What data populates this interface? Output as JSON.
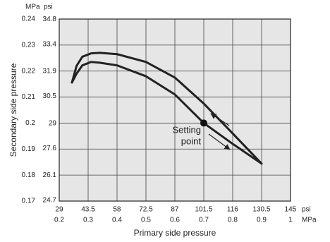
{
  "chart_data": {
    "type": "line",
    "x_label": "Primary side pressure",
    "y_label": "Secondary side pressure",
    "x_unit": "MPa",
    "x2_unit": "psi",
    "y_unit": "MPa",
    "y2_unit": "psi",
    "x": [
      0.244,
      0.26,
      0.28,
      0.31,
      0.34,
      0.4,
      0.5,
      0.6,
      0.7,
      0.8,
      0.9
    ],
    "series": [
      {
        "color": "#222222",
        "values": [
          0.2156,
          0.222,
          0.2255,
          0.2268,
          0.227,
          0.2265,
          0.2235,
          0.2175,
          0.2075,
          0.196,
          0.1844
        ]
      },
      {
        "color": "#222222",
        "values": [
          0.2156,
          0.219,
          0.2222,
          0.2235,
          0.2232,
          0.2222,
          0.218,
          0.211,
          0.2,
          0.192,
          0.1844
        ]
      }
    ],
    "xlim": [
      0.2,
      1.0
    ],
    "xticks": [
      0.2,
      0.3,
      0.4,
      0.5,
      0.6,
      0.7,
      0.8,
      0.9,
      1
    ],
    "x2lim": [
      29.01,
      145.04
    ],
    "x2ticks": [
      29,
      43.5,
      58,
      72.5,
      87,
      101.5,
      116,
      130.5,
      145
    ],
    "ylim": [
      0.17,
      0.24
    ],
    "yticks": [
      0.17,
      0.18,
      0.19,
      0.2,
      0.21,
      0.22,
      0.23,
      0.24
    ],
    "y2lim": [
      24.66,
      34.81
    ],
    "y2ticks": [
      24.7,
      26.1,
      27.6,
      29,
      30.5,
      31.9,
      33.4,
      34.8
    ],
    "grid": true,
    "setting_point": {
      "x": 0.7,
      "y": 0.2,
      "label": [
        "Setting",
        "point"
      ]
    }
  }
}
